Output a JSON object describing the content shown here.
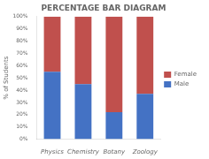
{
  "chart_data": {
    "type": "bar",
    "title": "PERCENTAGE BAR DIAGRAM",
    "categories": [
      "Physics",
      "Chemistry",
      "Botany",
      "Zoology"
    ],
    "series": [
      {
        "name": "Male",
        "color": "#4472C4",
        "values": [
          55,
          45,
          22,
          37
        ]
      },
      {
        "name": "Female",
        "color": "#C0504D",
        "values": [
          45,
          55,
          78,
          63
        ]
      }
    ],
    "stacked": true,
    "ylabel": "% of Students",
    "ylim": [
      0,
      100
    ],
    "yticks": [
      {
        "value": 0,
        "label": "0%"
      },
      {
        "value": 10,
        "label": "10%"
      },
      {
        "value": 20,
        "label": "20%"
      },
      {
        "value": 30,
        "label": "30%"
      },
      {
        "value": 40,
        "label": "40%"
      },
      {
        "value": 50,
        "label": "50%"
      },
      {
        "value": 60,
        "label": "60%"
      },
      {
        "value": 70,
        "label": "70%"
      },
      {
        "value": 80,
        "label": "80%"
      },
      {
        "value": 90,
        "label": "90%"
      },
      {
        "value": 100,
        "label": "100%"
      }
    ],
    "grid": false,
    "legend": "right"
  }
}
